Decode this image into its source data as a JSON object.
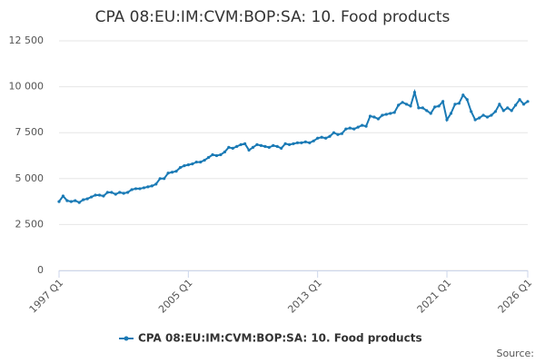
{
  "chart_data": {
    "type": "line",
    "title": "CPA 08:EU:IM:CVM:BOP:SA: 10. Food products",
    "source": "Source:",
    "categories": [
      "1997 Q1",
      null,
      null,
      null,
      null,
      null,
      null,
      null,
      null,
      null,
      null,
      null,
      null,
      null,
      null,
      null,
      null,
      null,
      null,
      null,
      null,
      null,
      null,
      null,
      null,
      null,
      null,
      null,
      null,
      null,
      null,
      null,
      "2005 Q1",
      null,
      null,
      null,
      null,
      null,
      null,
      null,
      null,
      null,
      null,
      null,
      null,
      null,
      null,
      null,
      null,
      null,
      null,
      null,
      null,
      null,
      null,
      null,
      null,
      null,
      null,
      null,
      null,
      null,
      null,
      null,
      "2013 Q1",
      null,
      null,
      null,
      null,
      null,
      null,
      null,
      null,
      null,
      null,
      null,
      null,
      null,
      null,
      null,
      null,
      null,
      null,
      null,
      null,
      null,
      null,
      null,
      null,
      null,
      null,
      null,
      null,
      null,
      null,
      null,
      "2021 Q1",
      null,
      null,
      null,
      null,
      null,
      null,
      null,
      null,
      null,
      null,
      null,
      null,
      null,
      null,
      null,
      null,
      null,
      null,
      null,
      "2026 Q1"
    ],
    "series": [
      {
        "name": "CPA 08:EU:IM:CVM:BOP:SA: 10. Food products",
        "color": "#1a7ab5",
        "values": [
          3750,
          4050,
          3800,
          3750,
          3800,
          3700,
          3850,
          3900,
          4000,
          4100,
          4100,
          4050,
          4250,
          4250,
          4150,
          4250,
          4200,
          4250,
          4400,
          4450,
          4450,
          4500,
          4550,
          4600,
          4700,
          5000,
          5000,
          5300,
          5350,
          5400,
          5600,
          5700,
          5750,
          5800,
          5900,
          5900,
          6000,
          6150,
          6300,
          6250,
          6300,
          6450,
          6700,
          6650,
          6750,
          6850,
          6900,
          6550,
          6700,
          6850,
          6800,
          6750,
          6700,
          6800,
          6750,
          6650,
          6900,
          6850,
          6900,
          6950,
          6950,
          7000,
          6950,
          7050,
          7200,
          7250,
          7200,
          7300,
          7500,
          7400,
          7450,
          7700,
          7750,
          7700,
          7800,
          7900,
          7850,
          8400,
          8350,
          8250,
          8450,
          8500,
          8550,
          8600,
          9000,
          9150,
          9050,
          8950,
          9700,
          8850,
          8850,
          8700,
          8550,
          8900,
          8950,
          9200,
          8200,
          8550,
          9050,
          9100,
          9550,
          9300,
          8650,
          8200,
          8300,
          8450,
          8350,
          8450,
          8650,
          9050,
          8700,
          8850,
          8700,
          9000,
          9300,
          9050,
          9200
        ]
      }
    ],
    "ylim": [
      0,
      12500
    ],
    "yticks": [
      0,
      {
        "value": 2500,
        "label": "2 500"
      },
      {
        "value": 5000,
        "label": "5 000"
      },
      {
        "value": 7500,
        "label": "7 500"
      },
      {
        "value": 10000,
        "label": "10 000"
      },
      {
        "value": 12500,
        "label": "12 500"
      }
    ],
    "grid": true
  }
}
